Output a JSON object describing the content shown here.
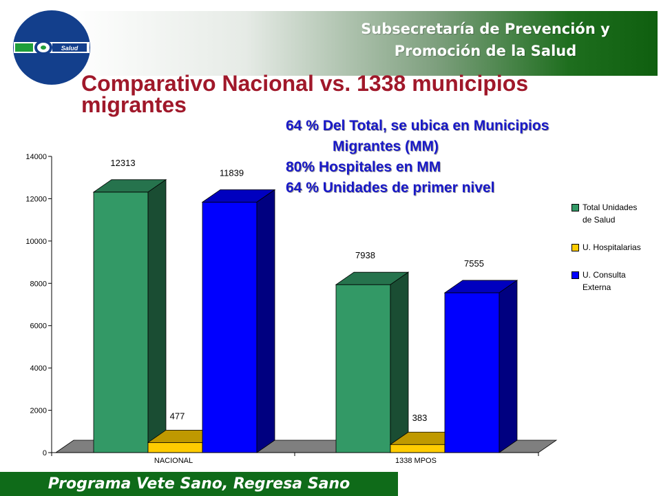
{
  "header": {
    "line1": "Subsecretaría de Prevención y",
    "line2": "Promoción de la Salud",
    "logo_text": "Salud"
  },
  "title": {
    "line1": "Comparativo Nacional vs. 1338 municipios",
    "line2": "migrantes"
  },
  "notes": [
    "64 % Del Total, se ubica en Municipios",
    "Migrantes (MM)",
    "80%  Hospitales en MM",
    "64 % Unidades de primer nivel"
  ],
  "chart_data": {
    "type": "bar",
    "categories": [
      "NACIONAL",
      "1338 MPOS"
    ],
    "series": [
      {
        "name": "Total Unidades de Salud",
        "values": [
          12313,
          7938
        ],
        "color": "#339966"
      },
      {
        "name": "U. Hospitalarias",
        "values": [
          477,
          383
        ],
        "color": "#ffcc00"
      },
      {
        "name": "U. Consulta Externa",
        "values": [
          11839,
          7555
        ],
        "color": "#0000ff"
      }
    ],
    "legend_lines": [
      [
        "Total Unidades",
        "de Salud"
      ],
      [
        "U. Hospitalarias"
      ],
      [
        "U. Consulta",
        "Externa"
      ]
    ],
    "data_labels": [
      [
        "12313",
        "477",
        "11839"
      ],
      [
        "7938",
        "383",
        "7555"
      ]
    ],
    "yticks": [
      "0",
      "2000",
      "4000",
      "6000",
      "8000",
      "10000",
      "12000",
      "14000"
    ],
    "ylim": [
      0,
      14000
    ],
    "legend_position": "right",
    "grid": false
  },
  "footer": {
    "text": "Programa Vete Sano, Regresa Sano"
  }
}
